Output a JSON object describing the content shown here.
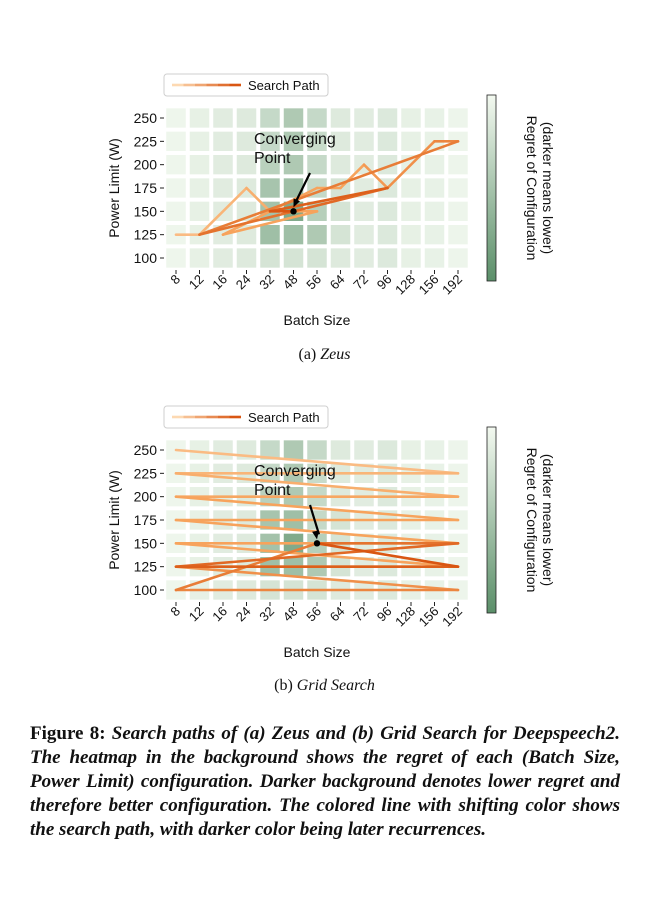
{
  "panel_a": {
    "subcaption_label": "(a)",
    "subcaption_name": "Zeus"
  },
  "panel_b": {
    "subcaption_label": "(b)",
    "subcaption_name": "Grid Search"
  },
  "figure_caption": {
    "label": "Figure 8:",
    "text": "Search paths of (a) Zeus and (b) Grid Search for Deepspeech2. The heatmap in the background shows the regret of each (Batch Size, Power Limit) configuration. Darker background denotes lower regret and therefore better configuration. The colored line with shifting color shows the search path, with darker color being later recurrences."
  },
  "colors": {
    "path_light": "#fdd9b2",
    "path_mid": "#f7a35c",
    "path_dark": "#d95612",
    "heat_light": "#f3f9f0",
    "heat_dark": "#5b8f69"
  },
  "chart_data": [
    {
      "type": "heatmap",
      "panel": "a",
      "xlabel": "Batch Size",
      "ylabel": "Power Limit (W)",
      "colorbar_label": "Regret of Configuration\n(darker means lower)",
      "x_categories": [
        "8",
        "12",
        "16",
        "24",
        "32",
        "48",
        "56",
        "64",
        "72",
        "96",
        "128",
        "156",
        "192"
      ],
      "y_categories": [
        100,
        125,
        150,
        175,
        200,
        225,
        250
      ],
      "regret_matrix_rows_top_to_bottom": [
        [
          0.97,
          0.92,
          0.88,
          0.86,
          0.7,
          0.55,
          0.7,
          0.86,
          0.88,
          0.85,
          0.92,
          0.93,
          0.96
        ],
        [
          0.97,
          0.92,
          0.88,
          0.86,
          0.7,
          0.55,
          0.72,
          0.86,
          0.88,
          0.85,
          0.92,
          0.93,
          0.96
        ],
        [
          0.97,
          0.92,
          0.88,
          0.86,
          0.62,
          0.55,
          0.7,
          0.86,
          0.88,
          0.85,
          0.92,
          0.93,
          0.96
        ],
        [
          0.97,
          0.92,
          0.88,
          0.86,
          0.5,
          0.45,
          0.7,
          0.8,
          0.88,
          0.85,
          0.92,
          0.93,
          0.96
        ],
        [
          0.97,
          0.92,
          0.88,
          0.86,
          0.48,
          0.25,
          0.6,
          0.8,
          0.88,
          0.85,
          0.92,
          0.93,
          0.96
        ],
        [
          0.97,
          0.92,
          0.88,
          0.86,
          0.45,
          0.45,
          0.55,
          0.8,
          0.88,
          0.85,
          0.92,
          0.93,
          0.96
        ],
        [
          0.97,
          0.92,
          0.88,
          0.86,
          0.8,
          0.8,
          0.8,
          0.86,
          0.88,
          0.85,
          0.92,
          0.93,
          0.96
        ]
      ],
      "legend": {
        "label": "Search Path",
        "location": "top-left"
      },
      "annotation": {
        "text": "Converging\nPoint",
        "x": "48",
        "y": 150
      },
      "search_path": [
        [
          "8",
          125
        ],
        [
          "12",
          125
        ],
        [
          "24",
          175
        ],
        [
          "32",
          150
        ],
        [
          "48",
          150
        ],
        [
          "56",
          150
        ],
        [
          "16",
          125
        ],
        [
          "56",
          175
        ],
        [
          "64",
          175
        ],
        [
          "72",
          200
        ],
        [
          "96",
          175
        ],
        [
          "156",
          225
        ],
        [
          "192",
          225
        ],
        [
          "12",
          125
        ],
        [
          "48",
          150
        ],
        [
          "96",
          175
        ],
        [
          "32",
          150
        ],
        [
          "48",
          150
        ]
      ]
    },
    {
      "type": "heatmap",
      "panel": "b",
      "xlabel": "Batch Size",
      "ylabel": "Power Limit (W)",
      "colorbar_label": "Regret of Configuration\n(darker means lower)",
      "x_categories": [
        "8",
        "12",
        "16",
        "24",
        "32",
        "48",
        "56",
        "64",
        "72",
        "96",
        "128",
        "156",
        "192"
      ],
      "y_categories": [
        100,
        125,
        150,
        175,
        200,
        225,
        250
      ],
      "regret_matrix_rows_top_to_bottom": [
        [
          0.97,
          0.92,
          0.88,
          0.86,
          0.7,
          0.55,
          0.7,
          0.86,
          0.88,
          0.85,
          0.92,
          0.93,
          0.96
        ],
        [
          0.97,
          0.92,
          0.88,
          0.86,
          0.7,
          0.55,
          0.72,
          0.86,
          0.88,
          0.85,
          0.92,
          0.93,
          0.96
        ],
        [
          0.97,
          0.92,
          0.88,
          0.86,
          0.62,
          0.55,
          0.7,
          0.86,
          0.88,
          0.85,
          0.92,
          0.93,
          0.96
        ],
        [
          0.97,
          0.92,
          0.88,
          0.86,
          0.5,
          0.45,
          0.7,
          0.8,
          0.88,
          0.85,
          0.92,
          0.93,
          0.96
        ],
        [
          0.97,
          0.92,
          0.88,
          0.86,
          0.48,
          0.25,
          0.6,
          0.8,
          0.88,
          0.85,
          0.92,
          0.93,
          0.96
        ],
        [
          0.97,
          0.92,
          0.88,
          0.86,
          0.45,
          0.45,
          0.55,
          0.8,
          0.88,
          0.85,
          0.92,
          0.93,
          0.96
        ],
        [
          0.97,
          0.92,
          0.88,
          0.86,
          0.8,
          0.8,
          0.8,
          0.86,
          0.88,
          0.85,
          0.92,
          0.93,
          0.96
        ]
      ],
      "legend": {
        "label": "Search Path",
        "location": "top-left"
      },
      "annotation": {
        "text": "Converging\nPoint",
        "x": "56",
        "y": 150
      },
      "search_path": [
        [
          "8",
          250
        ],
        [
          "192",
          225
        ],
        [
          "8",
          225
        ],
        [
          "192",
          200
        ],
        [
          "8",
          200
        ],
        [
          "192",
          175
        ],
        [
          "8",
          175
        ],
        [
          "192",
          150
        ],
        [
          "8",
          150
        ],
        [
          "192",
          125
        ],
        [
          "8",
          125
        ],
        [
          "192",
          100
        ],
        [
          "8",
          100
        ],
        [
          "56",
          150
        ],
        [
          "192",
          150
        ],
        [
          "8",
          125
        ],
        [
          "192",
          125
        ],
        [
          "56",
          150
        ]
      ]
    }
  ]
}
